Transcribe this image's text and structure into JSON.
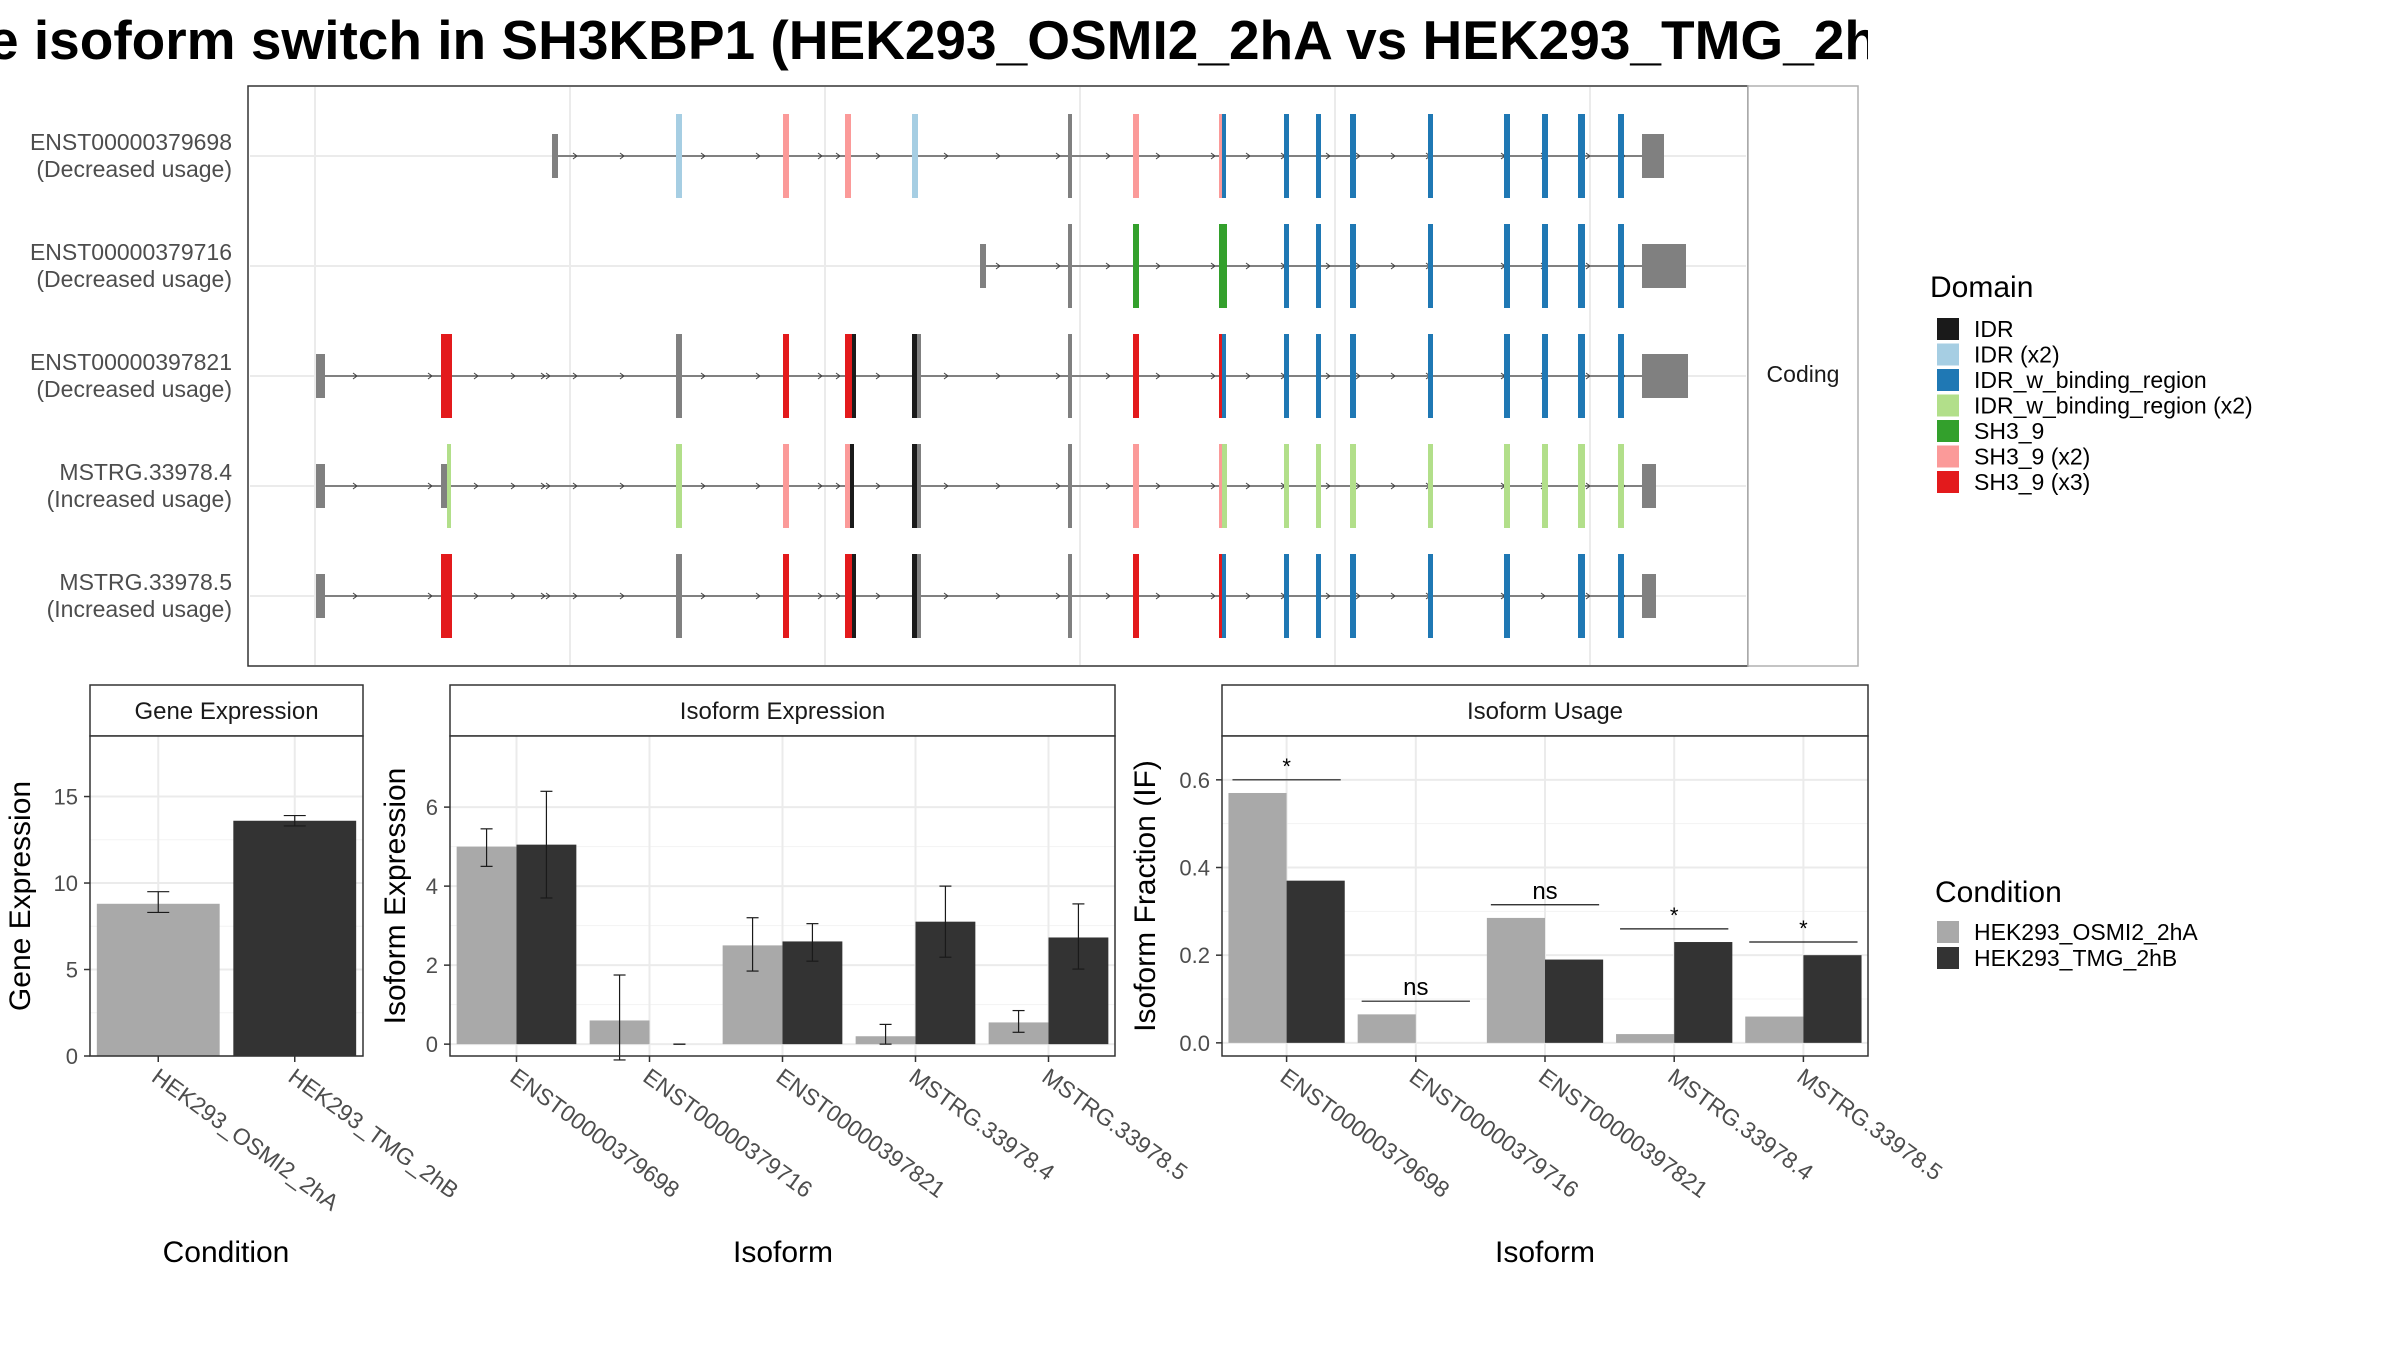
{
  "title": "e isoform switch in SH3KBP1 (HEK293_OSMI2_2hA vs HEK293_TMG_2hB",
  "structure": {
    "strip_label": "Coding",
    "exon_positions": [
      215,
      270,
      357,
      432,
      478,
      515,
      545,
      550,
      577,
      624,
      705,
      760,
      822,
      840,
      880,
      948,
      1000,
      1060,
      1110,
      1160,
      1215,
      1250,
      1285,
      1330,
      1360,
      1395,
      1430,
      1505,
      1545,
      1590,
      1625,
      1640,
      1680
    ],
    "isoforms": [
      {
        "id": "ENST00000379698",
        "label": "ENST00000379698",
        "usage": "(Decreased usage)",
        "start": 552,
        "exons": [
          {
            "x": 552,
            "w": 6,
            "h": 44,
            "c": "gray"
          },
          {
            "x": 676,
            "w": 6,
            "h": 84,
            "c": "idr_x2"
          },
          {
            "x": 783,
            "w": 6,
            "h": 84,
            "c": "sh3_x2"
          },
          {
            "x": 845,
            "w": 6,
            "h": 84,
            "c": "sh3_x2"
          },
          {
            "x": 912,
            "w": 6,
            "h": 84,
            "c": "idr_x2"
          },
          {
            "x": 1068,
            "w": 4,
            "h": 84,
            "c": "gray"
          },
          {
            "x": 1133,
            "w": 6,
            "h": 84,
            "c": "sh3_x2"
          },
          {
            "x": 1219,
            "w": 6,
            "h": 84,
            "c": "sh3_x2"
          },
          {
            "x": 1222,
            "w": 4,
            "h": 84,
            "c": "idrbind"
          },
          {
            "x": 1284,
            "w": 5,
            "h": 84,
            "c": "idrbind"
          },
          {
            "x": 1316,
            "w": 5,
            "h": 84,
            "c": "idrbind"
          },
          {
            "x": 1350,
            "w": 6,
            "h": 84,
            "c": "idrbind"
          },
          {
            "x": 1428,
            "w": 5,
            "h": 84,
            "c": "idrbind"
          },
          {
            "x": 1504,
            "w": 6,
            "h": 84,
            "c": "idrbind"
          },
          {
            "x": 1542,
            "w": 6,
            "h": 84,
            "c": "idrbind"
          },
          {
            "x": 1578,
            "w": 7,
            "h": 84,
            "c": "idrbind"
          },
          {
            "x": 1618,
            "w": 6,
            "h": 84,
            "c": "idrbind"
          },
          {
            "x": 1642,
            "w": 22,
            "h": 44,
            "c": "gray"
          }
        ]
      },
      {
        "id": "ENST00000379716",
        "label": "ENST00000379716",
        "usage": "(Decreased usage)",
        "start": 980,
        "exons": [
          {
            "x": 980,
            "w": 6,
            "h": 44,
            "c": "gray"
          },
          {
            "x": 1068,
            "w": 4,
            "h": 84,
            "c": "gray"
          },
          {
            "x": 1133,
            "w": 6,
            "h": 84,
            "c": "sh3"
          },
          {
            "x": 1219,
            "w": 8,
            "h": 84,
            "c": "sh3"
          },
          {
            "x": 1284,
            "w": 5,
            "h": 84,
            "c": "idrbind"
          },
          {
            "x": 1316,
            "w": 5,
            "h": 84,
            "c": "idrbind"
          },
          {
            "x": 1350,
            "w": 6,
            "h": 84,
            "c": "idrbind"
          },
          {
            "x": 1428,
            "w": 5,
            "h": 84,
            "c": "idrbind"
          },
          {
            "x": 1504,
            "w": 6,
            "h": 84,
            "c": "idrbind"
          },
          {
            "x": 1542,
            "w": 6,
            "h": 84,
            "c": "idrbind"
          },
          {
            "x": 1578,
            "w": 7,
            "h": 84,
            "c": "idrbind"
          },
          {
            "x": 1618,
            "w": 6,
            "h": 84,
            "c": "idrbind"
          },
          {
            "x": 1642,
            "w": 44,
            "h": 44,
            "c": "gray"
          }
        ]
      },
      {
        "id": "ENST00000397821",
        "label": "ENST00000397821",
        "usage": "(Decreased usage)",
        "start": 316,
        "exons": [
          {
            "x": 316,
            "w": 9,
            "h": 44,
            "c": "gray"
          },
          {
            "x": 441,
            "w": 11,
            "h": 84,
            "c": "sh3_x3"
          },
          {
            "x": 676,
            "w": 6,
            "h": 84,
            "c": "gray"
          },
          {
            "x": 783,
            "w": 6,
            "h": 84,
            "c": "sh3_x3"
          },
          {
            "x": 845,
            "w": 7,
            "h": 84,
            "c": "sh3_x3"
          },
          {
            "x": 852,
            "w": 4,
            "h": 84,
            "c": "idr"
          },
          {
            "x": 912,
            "w": 5,
            "h": 84,
            "c": "idr"
          },
          {
            "x": 917,
            "w": 4,
            "h": 84,
            "c": "gray"
          },
          {
            "x": 1068,
            "w": 4,
            "h": 84,
            "c": "gray"
          },
          {
            "x": 1133,
            "w": 6,
            "h": 84,
            "c": "sh3_x3"
          },
          {
            "x": 1219,
            "w": 6,
            "h": 84,
            "c": "sh3_x3"
          },
          {
            "x": 1222,
            "w": 4,
            "h": 84,
            "c": "idrbind"
          },
          {
            "x": 1284,
            "w": 5,
            "h": 84,
            "c": "idrbind"
          },
          {
            "x": 1316,
            "w": 5,
            "h": 84,
            "c": "idrbind"
          },
          {
            "x": 1350,
            "w": 6,
            "h": 84,
            "c": "idrbind"
          },
          {
            "x": 1428,
            "w": 5,
            "h": 84,
            "c": "idrbind"
          },
          {
            "x": 1504,
            "w": 6,
            "h": 84,
            "c": "idrbind"
          },
          {
            "x": 1542,
            "w": 6,
            "h": 84,
            "c": "idrbind"
          },
          {
            "x": 1578,
            "w": 7,
            "h": 84,
            "c": "idrbind"
          },
          {
            "x": 1618,
            "w": 6,
            "h": 84,
            "c": "idrbind"
          },
          {
            "x": 1642,
            "w": 46,
            "h": 44,
            "c": "gray"
          }
        ]
      },
      {
        "id": "MSTRG.33978.4",
        "label": "MSTRG.33978.4",
        "usage": "(Increased usage)",
        "start": 316,
        "exons": [
          {
            "x": 316,
            "w": 9,
            "h": 44,
            "c": "gray"
          },
          {
            "x": 441,
            "w": 6,
            "h": 44,
            "c": "gray"
          },
          {
            "x": 447,
            "w": 4,
            "h": 84,
            "c": "idrbind_x2"
          },
          {
            "x": 676,
            "w": 6,
            "h": 84,
            "c": "idrbind_x2"
          },
          {
            "x": 783,
            "w": 6,
            "h": 84,
            "c": "sh3_x2"
          },
          {
            "x": 845,
            "w": 5,
            "h": 84,
            "c": "sh3_x2"
          },
          {
            "x": 850,
            "w": 4,
            "h": 84,
            "c": "idr"
          },
          {
            "x": 912,
            "w": 5,
            "h": 84,
            "c": "idr"
          },
          {
            "x": 917,
            "w": 4,
            "h": 84,
            "c": "gray"
          },
          {
            "x": 1068,
            "w": 4,
            "h": 84,
            "c": "gray"
          },
          {
            "x": 1133,
            "w": 6,
            "h": 84,
            "c": "sh3_x2"
          },
          {
            "x": 1219,
            "w": 6,
            "h": 84,
            "c": "sh3_x2"
          },
          {
            "x": 1222,
            "w": 5,
            "h": 84,
            "c": "idrbind_x2"
          },
          {
            "x": 1284,
            "w": 5,
            "h": 84,
            "c": "idrbind_x2"
          },
          {
            "x": 1316,
            "w": 5,
            "h": 84,
            "c": "idrbind_x2"
          },
          {
            "x": 1350,
            "w": 6,
            "h": 84,
            "c": "idrbind_x2"
          },
          {
            "x": 1428,
            "w": 5,
            "h": 84,
            "c": "idrbind_x2"
          },
          {
            "x": 1504,
            "w": 6,
            "h": 84,
            "c": "idrbind_x2"
          },
          {
            "x": 1542,
            "w": 6,
            "h": 84,
            "c": "idrbind_x2"
          },
          {
            "x": 1578,
            "w": 7,
            "h": 84,
            "c": "idrbind_x2"
          },
          {
            "x": 1618,
            "w": 6,
            "h": 84,
            "c": "idrbind_x2"
          },
          {
            "x": 1642,
            "w": 14,
            "h": 44,
            "c": "gray"
          }
        ]
      },
      {
        "id": "MSTRG.33978.5",
        "label": "MSTRG.33978.5",
        "usage": "(Increased usage)",
        "start": 316,
        "exons": [
          {
            "x": 316,
            "w": 9,
            "h": 44,
            "c": "gray"
          },
          {
            "x": 441,
            "w": 11,
            "h": 84,
            "c": "sh3_x3"
          },
          {
            "x": 676,
            "w": 6,
            "h": 84,
            "c": "gray"
          },
          {
            "x": 783,
            "w": 6,
            "h": 84,
            "c": "sh3_x3"
          },
          {
            "x": 845,
            "w": 7,
            "h": 84,
            "c": "sh3_x3"
          },
          {
            "x": 852,
            "w": 4,
            "h": 84,
            "c": "idr"
          },
          {
            "x": 912,
            "w": 5,
            "h": 84,
            "c": "idr"
          },
          {
            "x": 917,
            "w": 4,
            "h": 84,
            "c": "gray"
          },
          {
            "x": 1068,
            "w": 4,
            "h": 84,
            "c": "gray"
          },
          {
            "x": 1133,
            "w": 6,
            "h": 84,
            "c": "sh3_x3"
          },
          {
            "x": 1219,
            "w": 6,
            "h": 84,
            "c": "sh3_x3"
          },
          {
            "x": 1222,
            "w": 4,
            "h": 84,
            "c": "idrbind"
          },
          {
            "x": 1284,
            "w": 5,
            "h": 84,
            "c": "idrbind"
          },
          {
            "x": 1316,
            "w": 5,
            "h": 84,
            "c": "idrbind"
          },
          {
            "x": 1350,
            "w": 6,
            "h": 84,
            "c": "idrbind"
          },
          {
            "x": 1428,
            "w": 5,
            "h": 84,
            "c": "idrbind"
          },
          {
            "x": 1504,
            "w": 6,
            "h": 84,
            "c": "idrbind"
          },
          {
            "x": 1578,
            "w": 7,
            "h": 84,
            "c": "idrbind"
          },
          {
            "x": 1618,
            "w": 6,
            "h": 84,
            "c": "idrbind"
          },
          {
            "x": 1642,
            "w": 14,
            "h": 44,
            "c": "gray"
          }
        ]
      }
    ]
  },
  "legend_domain": {
    "title": "Domain",
    "items": [
      {
        "key": "idr",
        "label": "IDR",
        "color": "#1a1a1a"
      },
      {
        "key": "idr_x2",
        "label": "IDR (x2)",
        "color": "#a6cee3"
      },
      {
        "key": "idrbind",
        "label": "IDR_w_binding_region",
        "color": "#1f78b4"
      },
      {
        "key": "idrbind_x2",
        "label": "IDR_w_binding_region (x2)",
        "color": "#b2df8a"
      },
      {
        "key": "sh3",
        "label": "SH3_9",
        "color": "#33a02c"
      },
      {
        "key": "sh3_x2",
        "label": "SH3_9 (x2)",
        "color": "#fb9a99"
      },
      {
        "key": "sh3_x3",
        "label": "SH3_9 (x3)",
        "color": "#e31a1c"
      }
    ]
  },
  "legend_condition": {
    "title": "Condition",
    "items": [
      {
        "label": "HEK293_OSMI2_2hA",
        "color": "#a9a9a9"
      },
      {
        "label": "HEK293_TMG_2hB",
        "color": "#333333"
      }
    ]
  },
  "chart_data": [
    {
      "type": "bar",
      "title": "Gene Expression",
      "xlabel": "Condition",
      "ylabel": "Gene Expression",
      "ylim": [
        0,
        18.5
      ],
      "yticks": [
        0,
        5,
        10,
        15
      ],
      "categories": [
        "HEK293_OSMI2_2hA",
        "HEK293_TMG_2hB"
      ],
      "values": [
        8.8,
        13.6
      ],
      "errors": [
        [
          8.3,
          9.5
        ],
        [
          13.3,
          13.9
        ]
      ],
      "colors": [
        "#a9a9a9",
        "#333333"
      ]
    },
    {
      "type": "bar",
      "title": "Isoform Expression",
      "xlabel": "Isoform",
      "ylabel": "Isoform Expression",
      "ylim": [
        -0.3,
        7.8
      ],
      "yticks": [
        0,
        2,
        4,
        6
      ],
      "categories": [
        "ENST00000379698",
        "ENST00000379716",
        "ENST00000397821",
        "MSTRG.33978.4",
        "MSTRG.33978.5"
      ],
      "series": [
        {
          "name": "HEK293_OSMI2_2hA",
          "values": [
            5.0,
            0.6,
            2.5,
            0.2,
            0.55
          ],
          "errors": [
            [
              4.5,
              5.45
            ],
            [
              -0.4,
              1.75
            ],
            [
              1.85,
              3.2
            ],
            [
              0.0,
              0.5
            ],
            [
              0.3,
              0.85
            ]
          ]
        },
        {
          "name": "HEK293_TMG_2hB",
          "values": [
            5.05,
            0.0,
            2.6,
            3.1,
            2.7
          ],
          "errors": [
            [
              3.7,
              6.4
            ],
            [
              0.0,
              0.0
            ],
            [
              2.1,
              3.05
            ],
            [
              2.2,
              4.0
            ],
            [
              1.9,
              3.55
            ]
          ]
        }
      ]
    },
    {
      "type": "bar",
      "title": "Isoform Usage",
      "xlabel": "Isoform",
      "ylabel": "Isoform Fraction (IF)",
      "ylim": [
        -0.03,
        0.7
      ],
      "yticks": [
        0.0,
        0.2,
        0.4,
        0.6
      ],
      "ytick_labels": [
        "0.0",
        "0.2",
        "0.4",
        "0.6"
      ],
      "categories": [
        "ENST00000379698",
        "ENST00000379716",
        "ENST00000397821",
        "MSTRG.33978.4",
        "MSTRG.33978.5"
      ],
      "series": [
        {
          "name": "HEK293_OSMI2_2hA",
          "values": [
            0.57,
            0.065,
            0.285,
            0.02,
            0.06
          ]
        },
        {
          "name": "HEK293_TMG_2hB",
          "values": [
            0.37,
            0.0,
            0.19,
            0.23,
            0.2
          ]
        }
      ],
      "annotations": [
        {
          "label": "*",
          "y": 0.6
        },
        {
          "label": "ns",
          "y": 0.095
        },
        {
          "label": "ns",
          "y": 0.315
        },
        {
          "label": "*",
          "y": 0.26
        },
        {
          "label": "*",
          "y": 0.23
        }
      ]
    }
  ]
}
